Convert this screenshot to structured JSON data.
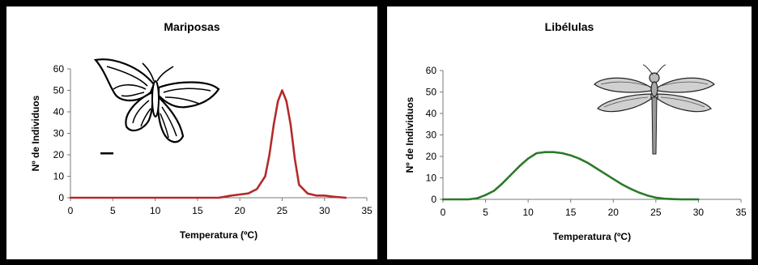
{
  "chart_data": [
    {
      "type": "line",
      "title": "Mariposas",
      "xlabel": "Temperatura (ºC)",
      "ylabel": "Nº de Individuos",
      "xlim": [
        0,
        35
      ],
      "ylim": [
        0,
        60
      ],
      "xticks": [
        0,
        5,
        10,
        15,
        20,
        25,
        30,
        35
      ],
      "yticks": [
        0,
        10,
        20,
        30,
        40,
        50,
        60
      ],
      "grid": false,
      "series": [
        {
          "color": "#b52a2a",
          "x": [
            0,
            17.5,
            18,
            19,
            20,
            21,
            22,
            23,
            23.5,
            24,
            24.5,
            25,
            25.5,
            26,
            26.5,
            27,
            28,
            29,
            30,
            31,
            32.5
          ],
          "y": [
            0,
            0,
            0.3,
            1,
            1.5,
            2,
            4,
            10,
            20,
            34,
            45,
            50,
            45,
            34,
            18,
            6,
            2,
            1,
            1,
            0.5,
            0
          ]
        }
      ],
      "illustration": "butterfly"
    },
    {
      "type": "line",
      "title": "Libélulas",
      "xlabel": "Temperatura (ºC)",
      "ylabel": "Nº de Individuos",
      "xlim": [
        0,
        35
      ],
      "ylim": [
        0,
        60
      ],
      "xticks": [
        0,
        5,
        10,
        15,
        20,
        25,
        30,
        35
      ],
      "yticks": [
        0,
        10,
        20,
        30,
        40,
        50,
        60
      ],
      "grid": false,
      "series": [
        {
          "color": "#2a7a2a",
          "x": [
            0,
            3,
            4,
            5,
            6,
            7,
            8,
            9,
            10,
            11,
            12,
            13,
            14,
            15,
            16,
            17,
            18,
            19,
            20,
            21,
            22,
            23,
            24,
            25,
            26,
            27,
            28,
            30
          ],
          "y": [
            0,
            0,
            0.5,
            2,
            4,
            7.5,
            11.5,
            15.5,
            19,
            21.5,
            22,
            22,
            21.5,
            20.5,
            19,
            17,
            14.5,
            12,
            9.5,
            7,
            5,
            3.2,
            1.8,
            0.8,
            0.3,
            0.1,
            0,
            0
          ]
        }
      ],
      "illustration": "dragonfly"
    }
  ]
}
